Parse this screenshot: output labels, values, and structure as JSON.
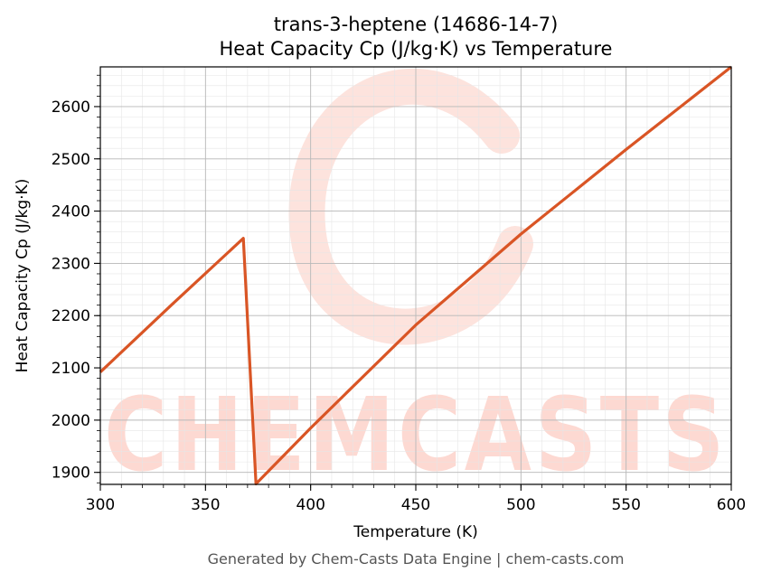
{
  "chart_data": {
    "type": "line",
    "title": "trans-3-heptene (14686-14-7)",
    "subtitle": "Heat Capacity Cp (J/kg·K) vs Temperature",
    "xlabel": "Temperature (K)",
    "ylabel": "Heat Capacity Cp (J/kg·K)",
    "xlim": [
      300,
      600
    ],
    "ylim": [
      1877,
      2676
    ],
    "xticks": [
      300,
      350,
      400,
      450,
      500,
      550,
      600
    ],
    "yticks": [
      1900,
      2000,
      2100,
      2200,
      2300,
      2400,
      2500,
      2600
    ],
    "grid": true,
    "legend": "none",
    "series": [
      {
        "color": "#d95525",
        "x": [
          300,
          334,
          368,
          374,
          400,
          450,
          500,
          550,
          600
        ],
        "y": [
          2092,
          2221,
          2348,
          1878,
          1985,
          2182,
          2356,
          2518,
          2676
        ]
      }
    ]
  },
  "watermark": {
    "text": "CHEMCASTS",
    "color": "#fdd9d2"
  },
  "footer": "Generated by Chem-Casts Data Engine | chem-casts.com"
}
